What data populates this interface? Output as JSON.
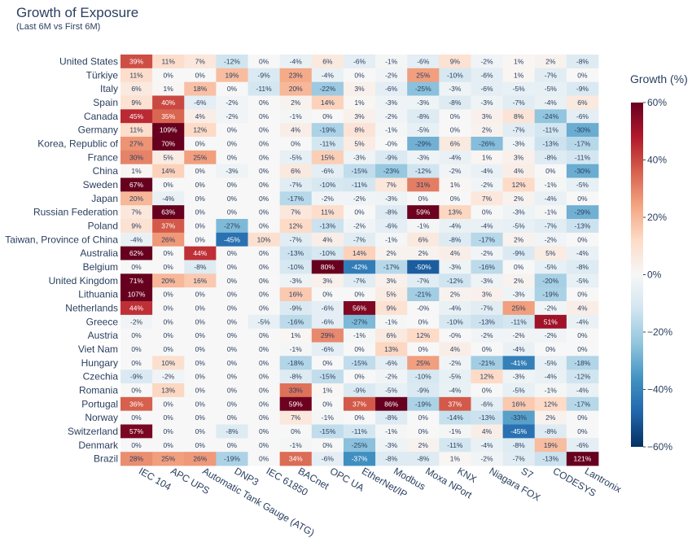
{
  "chart_data": {
    "type": "heatmap",
    "title": "Growth of Exposure",
    "subtitle": "(Last 6M vs First 6M)",
    "colorbar": {
      "title": "Growth (%)",
      "range": [
        -60,
        60
      ],
      "tick_values": [
        60,
        40,
        20,
        0,
        -20,
        -40,
        -60
      ],
      "tick_labels": [
        "60%",
        "40%",
        "20%",
        "0%",
        "−20%",
        "−40%",
        "−60%"
      ]
    },
    "x": [
      "IEC 104",
      "APC UPS",
      "Automatic Tank Gauge (ATG)",
      "DNP3",
      "IEC 61850",
      "BACnet",
      "OPC UA",
      "EtherNet/IP",
      "Modbus",
      "Moxa NPort",
      "KNX",
      "Niagara FOX",
      "S7",
      "CODESYS",
      "Lantronix"
    ],
    "y": [
      "United States",
      "Türkiye",
      "Italy",
      "Spain",
      "Canada",
      "Germany",
      "Korea, Republic of",
      "France",
      "China",
      "Sweden",
      "Japan",
      "Russian Federation",
      "Poland",
      "Taiwan, Province of China",
      "Australia",
      "Belgium",
      "United Kingdom",
      "Lithuania",
      "Netherlands",
      "Greece",
      "Austria",
      "Viet Nam",
      "Hungary",
      "Czechia",
      "Romania",
      "Portugal",
      "Norway",
      "Switzerland",
      "Denmark",
      "Brazil"
    ],
    "z": [
      [
        39,
        11,
        7,
        -12,
        0,
        -4,
        6,
        -6,
        -1,
        -6,
        9,
        -2,
        1,
        2,
        -8
      ],
      [
        11,
        0,
        0,
        19,
        -9,
        23,
        -4,
        0,
        -2,
        25,
        -10,
        -6,
        1,
        -7,
        0
      ],
      [
        6,
        1,
        18,
        0,
        -11,
        20,
        -22,
        3,
        -6,
        -25,
        -3,
        -6,
        -5,
        -5,
        -9
      ],
      [
        9,
        40,
        -6,
        -2,
        0,
        2,
        14,
        1,
        -3,
        -3,
        -8,
        -3,
        -7,
        -4,
        6
      ],
      [
        45,
        35,
        4,
        -2,
        0,
        -1,
        0,
        3,
        -2,
        -8,
        0,
        3,
        8,
        -24,
        -6
      ],
      [
        11,
        109,
        12,
        0,
        0,
        4,
        -19,
        8,
        -1,
        -5,
        0,
        2,
        -7,
        -11,
        -30
      ],
      [
        27,
        70,
        0,
        0,
        0,
        0,
        -11,
        5,
        0,
        -29,
        6,
        -26,
        -3,
        -13,
        -17
      ],
      [
        30,
        5,
        25,
        0,
        0,
        -5,
        15,
        -3,
        -9,
        -3,
        -4,
        1,
        3,
        -8,
        -11
      ],
      [
        1,
        14,
        0,
        -3,
        0,
        6,
        -6,
        -15,
        -23,
        -12,
        -2,
        -4,
        4,
        0,
        -30
      ],
      [
        67,
        0,
        0,
        0,
        0,
        -7,
        -10,
        -11,
        7,
        31,
        1,
        -2,
        12,
        -1,
        -5
      ],
      [
        20,
        -4,
        0,
        0,
        0,
        -17,
        -2,
        -2,
        -3,
        0,
        0,
        7,
        2,
        -4,
        0
      ],
      [
        7,
        63,
        0,
        0,
        0,
        7,
        11,
        0,
        -8,
        59,
        13,
        0,
        -3,
        -1,
        -29
      ],
      [
        9,
        37,
        0,
        -27,
        0,
        12,
        -13,
        -2,
        -6,
        -1,
        -4,
        -4,
        -5,
        -7,
        -13
      ],
      [
        -4,
        26,
        0,
        -45,
        10,
        -7,
        4,
        -7,
        -1,
        6,
        -8,
        -17,
        2,
        -2,
        0
      ],
      [
        62,
        0,
        44,
        0,
        0,
        -13,
        -10,
        14,
        2,
        2,
        4,
        -2,
        -9,
        5,
        -4
      ],
      [
        0,
        0,
        -8,
        0,
        0,
        -10,
        80,
        -42,
        -17,
        -50,
        -3,
        -16,
        0,
        -5,
        -8
      ],
      [
        71,
        20,
        16,
        0,
        0,
        -3,
        3,
        -7,
        3,
        -7,
        -12,
        -3,
        2,
        -20,
        -5
      ],
      [
        107,
        0,
        0,
        0,
        0,
        16,
        0,
        0,
        5,
        -21,
        2,
        3,
        -3,
        -19,
        0
      ],
      [
        44,
        0,
        0,
        0,
        0,
        -9,
        -6,
        56,
        9,
        0,
        -4,
        -7,
        25,
        -2,
        4
      ],
      [
        -2,
        0,
        0,
        0,
        -5,
        -16,
        -6,
        -27,
        -1,
        0,
        -10,
        -13,
        -11,
        51,
        -4
      ],
      [
        0,
        0,
        0,
        0,
        0,
        1,
        29,
        -1,
        6,
        12,
        0,
        -2,
        -2,
        -2,
        0
      ],
      [
        0,
        0,
        0,
        0,
        0,
        -1,
        -6,
        0,
        13,
        0,
        4,
        0,
        -4,
        0,
        0
      ],
      [
        0,
        10,
        0,
        0,
        0,
        -18,
        0,
        -15,
        -6,
        25,
        -2,
        -21,
        -41,
        -5,
        -18
      ],
      [
        -9,
        -2,
        0,
        0,
        0,
        -8,
        -15,
        0,
        -2,
        -10,
        -5,
        12,
        -3,
        -4,
        -12
      ],
      [
        0,
        13,
        0,
        0,
        0,
        33,
        1,
        -9,
        -5,
        -9,
        -4,
        0,
        -5,
        -1,
        -4
      ],
      [
        36,
        0,
        0,
        0,
        0,
        59,
        0,
        37,
        86,
        -19,
        37,
        -6,
        16,
        12,
        -17
      ],
      [
        0,
        0,
        0,
        0,
        0,
        7,
        -1,
        0,
        -8,
        0,
        -14,
        -13,
        -33,
        2,
        0
      ],
      [
        57,
        0,
        0,
        -8,
        0,
        0,
        -15,
        -11,
        -1,
        0,
        -1,
        4,
        -45,
        -8,
        0
      ],
      [
        0,
        0,
        0,
        0,
        0,
        -1,
        0,
        -25,
        -3,
        2,
        -11,
        -4,
        -8,
        19,
        -6
      ],
      [
        28,
        25,
        26,
        -19,
        0,
        34,
        -6,
        -37,
        -8,
        -8,
        1,
        -2,
        -7,
        -13,
        121
      ]
    ],
    "cell_labels": [
      [
        "39%",
        "11%",
        "7%",
        "-12%",
        "0%",
        "-4%",
        "6%",
        "-6%",
        "-1%",
        "-6%",
        "9%",
        "-2%",
        "1%",
        "2%",
        "-8%"
      ],
      [
        "11%",
        "0%",
        "0%",
        "19%",
        "-9%",
        "23%",
        "-4%",
        "0%",
        "-2%",
        "25%",
        "-10%",
        "-6%",
        "1%",
        "-7%",
        "0%"
      ],
      [
        "6%",
        "1%",
        "18%",
        "0%",
        "-11%",
        "20%",
        "-22%",
        "3%",
        "-6%",
        "-25%",
        "-3%",
        "-6%",
        "-5%",
        "-5%",
        "-9%"
      ],
      [
        "9%",
        "40%",
        "-6%",
        "-2%",
        "0%",
        "2%",
        "14%",
        "1%",
        "-3%",
        "-3%",
        "-8%",
        "-3%",
        "-7%",
        "-4%",
        "6%"
      ],
      [
        "45%",
        "35%",
        "4%",
        "-2%",
        "0%",
        "-1%",
        "0%",
        "3%",
        "-2%",
        "-8%",
        "0%",
        "3%",
        "8%",
        "-24%",
        "-6%"
      ],
      [
        "11%",
        "109%",
        "12%",
        "0%",
        "0%",
        "4%",
        "-19%",
        "8%",
        "-1%",
        "-5%",
        "0%",
        "2%",
        "-7%",
        "-11%",
        "-30%"
      ],
      [
        "27%",
        "70%",
        "0%",
        "0%",
        "0%",
        "0%",
        "-11%",
        "5%",
        "-0%",
        "-29%",
        "6%",
        "-26%",
        "-3%",
        "-13%",
        "-17%"
      ],
      [
        "30%",
        "5%",
        "25%",
        "0%",
        "0%",
        "-5%",
        "15%",
        "-3%",
        "-9%",
        "-3%",
        "-4%",
        "1%",
        "3%",
        "-8%",
        "-11%"
      ],
      [
        "1%",
        "14%",
        "0%",
        "-3%",
        "0%",
        "6%",
        "-6%",
        "-15%",
        "-23%",
        "-12%",
        "-2%",
        "-4%",
        "4%",
        "0%",
        "-30%"
      ],
      [
        "67%",
        "0%",
        "0%",
        "0%",
        "0%",
        "-7%",
        "-10%",
        "-11%",
        "7%",
        "31%",
        "1%",
        "-2%",
        "12%",
        "-1%",
        "-5%"
      ],
      [
        "20%",
        "-4%",
        "0%",
        "0%",
        "0%",
        "-17%",
        "-2%",
        "-2%",
        "-3%",
        "0%",
        "0%",
        "7%",
        "2%",
        "-4%",
        "0%"
      ],
      [
        "7%",
        "63%",
        "0%",
        "0%",
        "0%",
        "7%",
        "11%",
        "0%",
        "-8%",
        "59%",
        "13%",
        "0%",
        "-3%",
        "-1%",
        "-29%"
      ],
      [
        "9%",
        "37%",
        "0%",
        "-27%",
        "0%",
        "12%",
        "-13%",
        "-2%",
        "-6%",
        "-1%",
        "-4%",
        "-4%",
        "-5%",
        "-7%",
        "-13%"
      ],
      [
        "-4%",
        "26%",
        "0%",
        "-45%",
        "10%",
        "-7%",
        "4%",
        "-7%",
        "-1%",
        "6%",
        "-8%",
        "-17%",
        "2%",
        "-2%",
        "0%"
      ],
      [
        "62%",
        "0%",
        "44%",
        "0%",
        "0%",
        "-13%",
        "-10%",
        "14%",
        "2%",
        "2%",
        "4%",
        "-2%",
        "-9%",
        "5%",
        "-4%"
      ],
      [
        "0%",
        "0%",
        "-8%",
        "0%",
        "0%",
        "-10%",
        "80%",
        "-42%",
        "-17%",
        "-50%",
        "-3%",
        "-16%",
        "0%",
        "-5%",
        "-8%"
      ],
      [
        "71%",
        "20%",
        "16%",
        "0%",
        "0%",
        "-3%",
        "3%",
        "-7%",
        "3%",
        "-7%",
        "-12%",
        "-3%",
        "2%",
        "-20%",
        "-5%"
      ],
      [
        "107%",
        "0%",
        "0%",
        "0%",
        "0%",
        "16%",
        "0%",
        "0%",
        "5%",
        "-21%",
        "2%",
        "3%",
        "-3%",
        "-19%",
        "0%"
      ],
      [
        "44%",
        "0%",
        "0%",
        "0%",
        "0%",
        "-9%",
        "-6%",
        "56%",
        "9%",
        "-0%",
        "-4%",
        "-7%",
        "25%",
        "-2%",
        "4%"
      ],
      [
        "-2%",
        "0%",
        "0%",
        "0%",
        "-5%",
        "-16%",
        "-6%",
        "-27%",
        "-1%",
        "0%",
        "-10%",
        "-13%",
        "-11%",
        "51%",
        "-4%"
      ],
      [
        "0%",
        "0%",
        "0%",
        "0%",
        "0%",
        "1%",
        "29%",
        "-1%",
        "6%",
        "12%",
        "-0%",
        "-2%",
        "-2%",
        "-2%",
        "0%"
      ],
      [
        "0%",
        "0%",
        "0%",
        "0%",
        "0%",
        "-1%",
        "-6%",
        "0%",
        "13%",
        "0%",
        "4%",
        "0%",
        "-4%",
        "0%",
        "0%"
      ],
      [
        "0%",
        "10%",
        "0%",
        "0%",
        "0%",
        "-18%",
        "0%",
        "-15%",
        "-6%",
        "25%",
        "-2%",
        "-21%",
        "-41%",
        "-5%",
        "-18%"
      ],
      [
        "-9%",
        "-2%",
        "0%",
        "0%",
        "0%",
        "-8%",
        "-15%",
        "0%",
        "-2%",
        "-10%",
        "-5%",
        "12%",
        "-3%",
        "-4%",
        "-12%"
      ],
      [
        "0%",
        "13%",
        "0%",
        "0%",
        "0%",
        "33%",
        "1%",
        "-9%",
        "-5%",
        "-9%",
        "-4%",
        "0%",
        "-5%",
        "-1%",
        "-4%"
      ],
      [
        "36%",
        "0%",
        "0%",
        "0%",
        "0%",
        "59%",
        "0%",
        "37%",
        "86%",
        "-19%",
        "37%",
        "-6%",
        "16%",
        "12%",
        "-17%"
      ],
      [
        "0%",
        "0%",
        "0%",
        "0%",
        "0%",
        "7%",
        "-1%",
        "0%",
        "-8%",
        "0%",
        "-14%",
        "-13%",
        "-33%",
        "2%",
        "0%"
      ],
      [
        "57%",
        "0%",
        "0%",
        "-8%",
        "0%",
        "0%",
        "-15%",
        "-11%",
        "-1%",
        "0%",
        "-1%",
        "4%",
        "-45%",
        "-8%",
        "0%"
      ],
      [
        "0%",
        "0%",
        "0%",
        "0%",
        "0%",
        "-1%",
        "0%",
        "-25%",
        "-3%",
        "2%",
        "-11%",
        "-4%",
        "-8%",
        "19%",
        "-6%"
      ],
      [
        "28%",
        "25%",
        "26%",
        "-19%",
        "0%",
        "34%",
        "-6%",
        "-37%",
        "-8%",
        "-8%",
        "1%",
        "-2%",
        "-7%",
        "-13%",
        "121%"
      ]
    ],
    "colorscale": [
      "#053061",
      "#2166ac",
      "#4393c3",
      "#92c5de",
      "#d1e5f0",
      "#f7f7f7",
      "#fddbc7",
      "#f4a582",
      "#d6604d",
      "#b2182b",
      "#67001f"
    ]
  }
}
